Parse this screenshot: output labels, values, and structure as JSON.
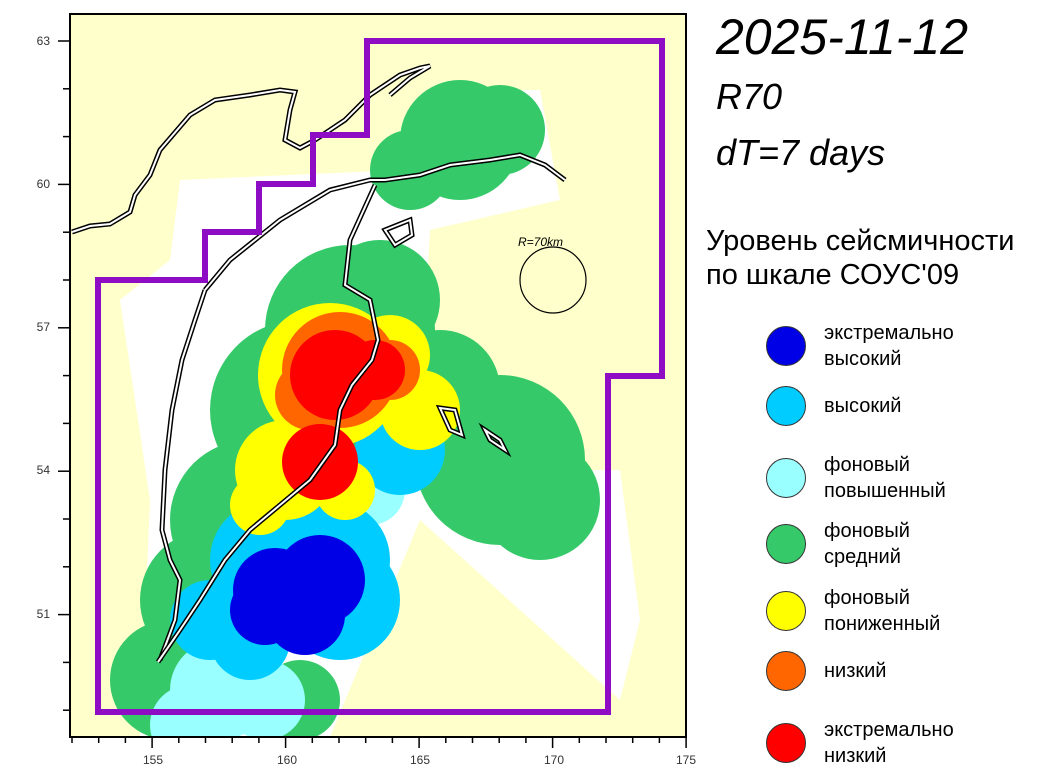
{
  "header": {
    "date": "2025-11-12",
    "radius_code": "R70",
    "dt": "dT=7 days"
  },
  "map": {
    "lon_ticks": [
      "155",
      "160",
      "165",
      "170",
      "175"
    ],
    "lat_ticks": [
      "63",
      "60",
      "57",
      "54",
      "51"
    ],
    "radius_label": "R=70km",
    "region_boundary_color": "#8e0cc4",
    "background_color": "#ffffcc"
  },
  "legend": {
    "title_line1": "Уровень сейсмичности",
    "title_line2": "по шкале СОУС'09",
    "items": [
      {
        "line1": "экстремально",
        "line2": "высокий",
        "color": "#0000e6"
      },
      {
        "line1": "высокий",
        "line2": "",
        "color": "#00ccff"
      },
      {
        "line1": "фоновый",
        "line2": "повышенный",
        "color": "#99ffff"
      },
      {
        "line1": "фоновый",
        "line2": "средний",
        "color": "#36c96a"
      },
      {
        "line1": "фоновый",
        "line2": "пониженный",
        "color": "#ffff00"
      },
      {
        "line1": "низкий",
        "line2": "",
        "color": "#ff6600"
      },
      {
        "line1": "экстремально",
        "line2": "низкий",
        "color": "#ff0000"
      }
    ]
  }
}
